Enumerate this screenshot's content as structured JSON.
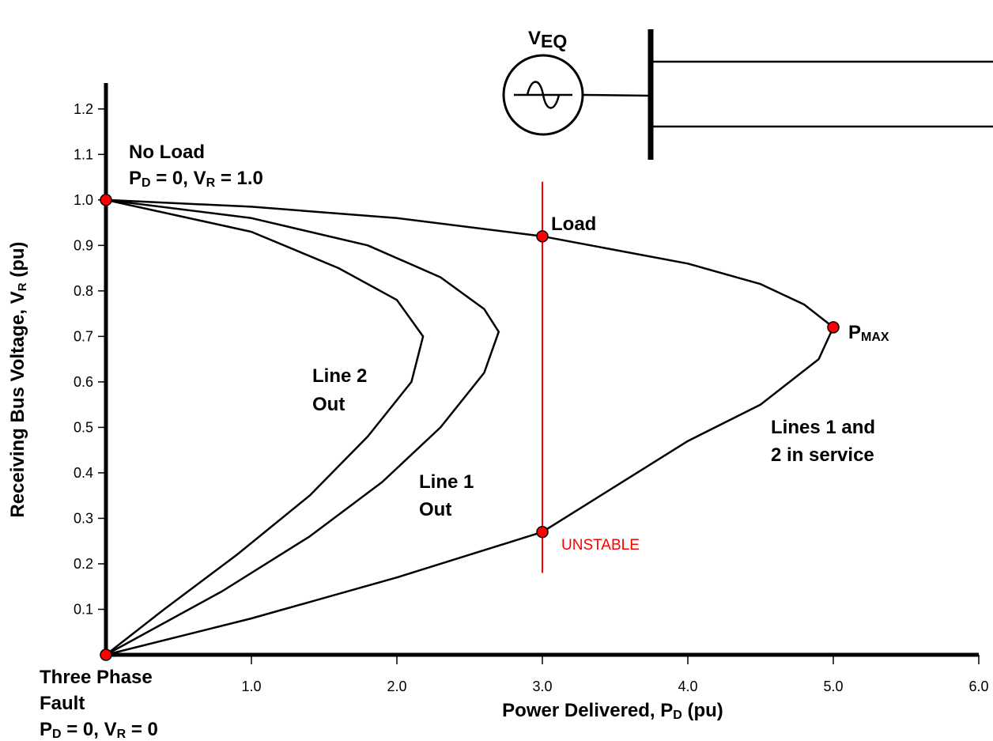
{
  "chart_data": {
    "type": "line",
    "xlabel": [
      "Power Delivered, P",
      "D",
      " (pu)"
    ],
    "ylabel": [
      "Receiving Bus Voltage, V",
      "R",
      " (pu)"
    ],
    "xlim": [
      0,
      6
    ],
    "ylim": [
      0,
      1.25
    ],
    "xticks": [
      {
        "value": 1,
        "label": "1.0"
      },
      {
        "value": 2,
        "label": "2.0"
      },
      {
        "value": 3,
        "label": "3.0"
      },
      {
        "value": 4,
        "label": "4.0"
      },
      {
        "value": 5,
        "label": "5.0"
      },
      {
        "value": 6,
        "label": "6.0"
      }
    ],
    "yticks": [
      0.1,
      0.2,
      0.3,
      0.4,
      0.5,
      0.6,
      0.7,
      0.8,
      0.9,
      {
        "value": 1,
        "label": "1.0"
      },
      1.1,
      1.2
    ],
    "series": [
      {
        "color": "#000000",
        "x": [
          0,
          1,
          2,
          3,
          4,
          4.5,
          4.8,
          5.0,
          4.9,
          4.5,
          4,
          3.5,
          3.0,
          2,
          1,
          0
        ],
        "values": [
          1.0,
          0.985,
          0.96,
          0.92,
          0.86,
          0.815,
          0.77,
          0.72,
          0.65,
          0.55,
          0.47,
          0.37,
          0.27,
          0.17,
          0.08,
          0
        ]
      },
      {
        "color": "#000000",
        "x": [
          0,
          1,
          1.8,
          2.3,
          2.6,
          2.7,
          2.6,
          2.3,
          1.9,
          1.4,
          0.8,
          0
        ],
        "values": [
          1.0,
          0.96,
          0.9,
          0.83,
          0.76,
          0.71,
          0.62,
          0.5,
          0.38,
          0.26,
          0.14,
          0
        ]
      },
      {
        "color": "#000000",
        "x": [
          0,
          1,
          1.6,
          2.0,
          2.18,
          2.1,
          1.8,
          1.4,
          0.9,
          0.4,
          0
        ],
        "values": [
          1.0,
          0.93,
          0.85,
          0.78,
          0.7,
          0.6,
          0.48,
          0.35,
          0.22,
          0.1,
          0
        ]
      }
    ],
    "points": {
      "color": "#ff0000",
      "x": [
        0,
        0,
        3,
        3,
        5
      ],
      "values": [
        1.0,
        0,
        0.92,
        0.27,
        0.72
      ]
    },
    "reference_line": {
      "color": "#ff0000",
      "x": 3,
      "ylim": [
        0.18,
        1.04
      ]
    },
    "source_label": [
      "V",
      "EQ"
    ],
    "annotations": [
      {
        "lines": [
          "No Load",
          [
            "P",
            "D",
            " = 0, V",
            "R",
            " = 1.0"
          ]
        ]
      },
      {
        "lines": [
          "Load"
        ]
      },
      {
        "lines": [
          [
            "P",
            "MAX"
          ]
        ]
      },
      {
        "lines": [
          "Line 2",
          "Out"
        ]
      },
      {
        "lines": [
          "Line 1",
          "Out"
        ]
      },
      {
        "lines": [
          "Lines 1 and",
          "2 in service"
        ]
      },
      {
        "lines": [
          "UNSTABLE"
        ],
        "color": "#ff0000",
        "bold": false
      },
      {
        "lines": [
          "Three Phase",
          "Fault",
          [
            "P",
            "D",
            " = 0, V",
            "R",
            " = 0"
          ]
        ]
      }
    ]
  }
}
